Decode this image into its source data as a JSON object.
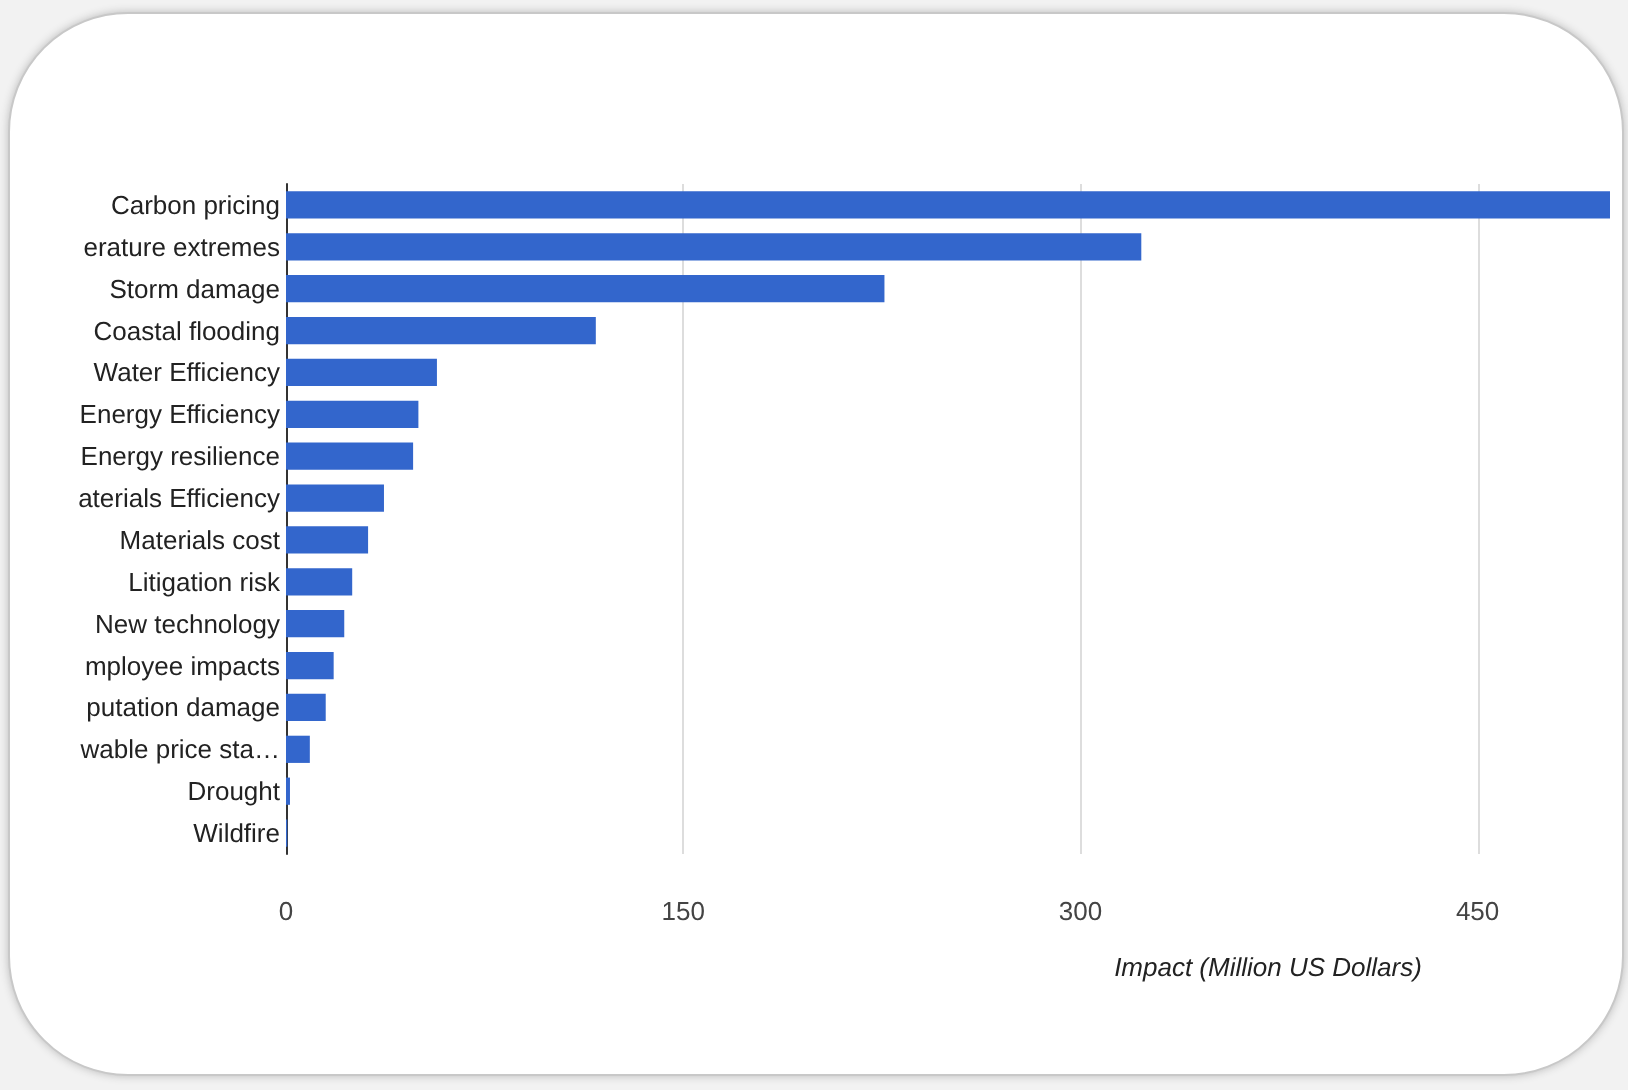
{
  "chart_data": {
    "type": "bar",
    "orientation": "horizontal",
    "xlabel": "Impact (Million US Dollars)",
    "categories": [
      "Carbon pricing",
      "erature extremes",
      "Storm damage",
      "Coastal flooding",
      "Water Efficiency",
      "Energy Efficiency",
      "Energy resilience",
      "aterials Efficiency",
      "Materials cost",
      "Litigation risk",
      "New technology",
      "mployee impacts",
      "putation damage",
      "wable price sta…",
      "Drought",
      "Wildfire"
    ],
    "values": [
      500,
      323,
      226,
      117,
      57,
      50,
      48,
      37,
      31,
      25,
      22,
      18,
      15,
      9,
      1.5,
      0.5
    ],
    "color": "#3366cc",
    "xlim": [
      0,
      500
    ],
    "xticks": [
      0,
      150,
      300,
      450
    ],
    "grid": "x"
  }
}
